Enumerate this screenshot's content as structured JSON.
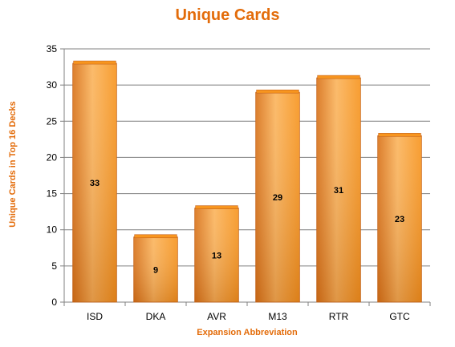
{
  "colors": {
    "accent": "#E36C0A",
    "bar_light": "#FBB55E",
    "bar_mid": "#F7951F",
    "bar_dark": "#D9731A",
    "grid": "#808080",
    "axis": "#808080",
    "text": "#000000"
  },
  "chart_data": {
    "type": "bar",
    "title": "Unique Cards",
    "xlabel": "Expansion Abbreviation",
    "ylabel": "Unique Cards in Top 16 Decks",
    "categories": [
      "ISD",
      "DKA",
      "AVR",
      "M13",
      "RTR",
      "GTC"
    ],
    "values": [
      33,
      9,
      13,
      29,
      31,
      23
    ],
    "data_labels": [
      "33",
      "9",
      "13",
      "29",
      "31",
      "23"
    ],
    "ylim": [
      0,
      35
    ],
    "yticks": [
      0,
      5,
      10,
      15,
      20,
      25,
      30,
      35
    ],
    "ytick_labels": [
      "0",
      "5",
      "10",
      "15",
      "20",
      "25",
      "30",
      "35"
    ],
    "grid": true,
    "legend": "none"
  }
}
